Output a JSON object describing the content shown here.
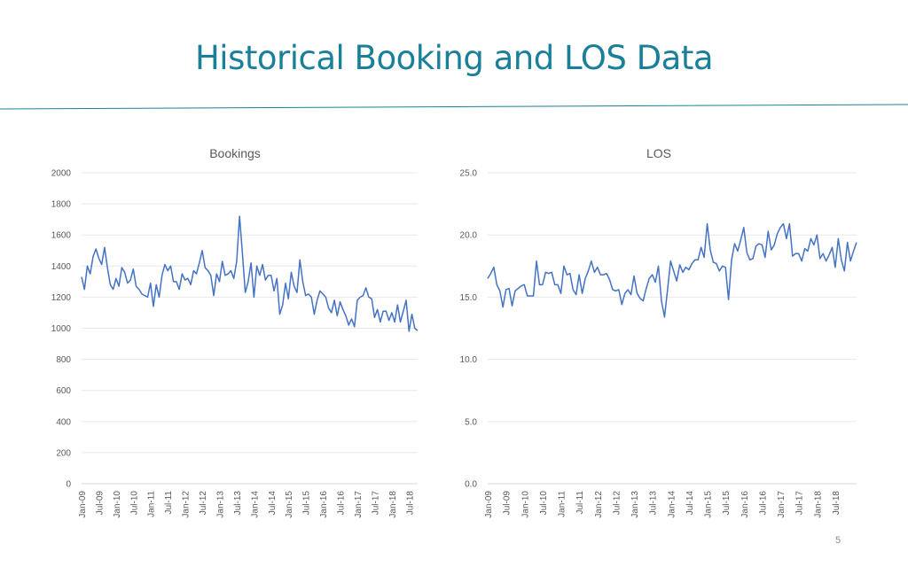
{
  "slide": {
    "title": "Historical Booking and LOS Data",
    "page_number": "5",
    "title_color": "#1a7f99",
    "rule_color": "#1a7f99"
  },
  "chart_data": [
    {
      "type": "line",
      "title": "Bookings",
      "xlabel": "",
      "ylabel": "",
      "ylim": [
        0,
        2000
      ],
      "yticks": [
        "0",
        "200",
        "400",
        "600",
        "800",
        "1000",
        "1200",
        "1400",
        "1600",
        "1800",
        "2000"
      ],
      "grid": true,
      "legend": "none",
      "line_color": "#4472c4",
      "x_tick_labels": [
        "Jan-09",
        "Jul-09",
        "Jan-10",
        "Jul-10",
        "Jan-11",
        "Jul-11",
        "Jan-12",
        "Jul-12",
        "Jan-13",
        "Jul-13",
        "Jan-14",
        "Jul-14",
        "Jan-15",
        "Jul-15",
        "Jan-16",
        "Jul-16",
        "Jan-17",
        "Jul-17",
        "Jan-18",
        "Jul-18"
      ],
      "x_start": "2009-01",
      "values": [
        1330,
        1250,
        1400,
        1350,
        1460,
        1510,
        1450,
        1410,
        1520,
        1390,
        1280,
        1250,
        1320,
        1270,
        1390,
        1360,
        1290,
        1310,
        1380,
        1270,
        1250,
        1220,
        1210,
        1200,
        1290,
        1140,
        1280,
        1200,
        1340,
        1410,
        1370,
        1400,
        1300,
        1300,
        1250,
        1350,
        1310,
        1320,
        1280,
        1370,
        1350,
        1420,
        1500,
        1390,
        1370,
        1340,
        1210,
        1350,
        1300,
        1430,
        1340,
        1350,
        1370,
        1320,
        1430,
        1720,
        1480,
        1230,
        1300,
        1420,
        1200,
        1400,
        1340,
        1410,
        1310,
        1340,
        1340,
        1240,
        1320,
        1090,
        1150,
        1290,
        1190,
        1360,
        1270,
        1230,
        1440,
        1300,
        1210,
        1220,
        1200,
        1090,
        1180,
        1240,
        1220,
        1200,
        1130,
        1100,
        1180,
        1080,
        1170,
        1120,
        1080,
        1020,
        1060,
        1010,
        1180,
        1200,
        1210,
        1260,
        1200,
        1190,
        1070,
        1120,
        1040,
        1110,
        1110,
        1050,
        1100,
        1040,
        1150,
        1040,
        1110,
        1180,
        980,
        1090,
        1000,
        985
      ]
    },
    {
      "type": "line",
      "title": "LOS",
      "xlabel": "",
      "ylabel": "",
      "ylim": [
        0,
        25
      ],
      "yticks": [
        "0.0",
        "5.0",
        "10.0",
        "15.0",
        "20.0",
        "25.0"
      ],
      "grid": true,
      "legend": "none",
      "line_color": "#4472c4",
      "x_tick_labels": [
        "Jan-09",
        "Jul-09",
        "Jan-10",
        "Jul-10",
        "Jan-11",
        "Jul-11",
        "Jan-12",
        "Jul-12",
        "Jan-13",
        "Jul-13",
        "Jan-14",
        "Jul-14",
        "Jan-15",
        "Jul-15",
        "Jan-16",
        "Jul-16",
        "Jan-17",
        "Jul-17",
        "Jan-18",
        "Jul-18"
      ],
      "x_start": "2009-01",
      "values": [
        16.5,
        16.9,
        17.4,
        16.0,
        15.5,
        14.2,
        15.6,
        15.7,
        14.3,
        15.5,
        15.7,
        15.9,
        16.0,
        15.1,
        15.1,
        15.1,
        17.9,
        16.0,
        16.0,
        17.0,
        16.9,
        17.0,
        16.0,
        16.0,
        15.3,
        17.5,
        16.8,
        16.9,
        15.6,
        15.2,
        16.8,
        15.3,
        16.5,
        17.1,
        17.9,
        17.0,
        17.4,
        16.8,
        16.8,
        16.9,
        16.4,
        15.6,
        15.5,
        15.6,
        14.4,
        15.3,
        15.6,
        15.2,
        16.7,
        15.3,
        14.9,
        14.7,
        15.7,
        16.5,
        16.8,
        16.2,
        17.5,
        14.7,
        13.4,
        15.6,
        17.9,
        17.1,
        16.3,
        17.6,
        17.0,
        17.4,
        17.2,
        17.7,
        18.0,
        18.0,
        19.0,
        18.2,
        20.9,
        18.8,
        17.8,
        17.7,
        17.1,
        17.5,
        17.4,
        14.8,
        18.0,
        19.3,
        18.7,
        19.6,
        20.6,
        18.6,
        18.0,
        18.1,
        19.1,
        19.3,
        19.2,
        18.2,
        20.3,
        18.8,
        19.2,
        20.1,
        20.6,
        20.9,
        19.7,
        20.9,
        18.3,
        18.5,
        18.5,
        17.9,
        18.9,
        18.7,
        19.7,
        19.2,
        20.0,
        18.1,
        18.5,
        17.9,
        18.4,
        19.0,
        17.4,
        19.7,
        18.0,
        17.1,
        19.4,
        17.9,
        18.7,
        19.4
      ]
    }
  ]
}
